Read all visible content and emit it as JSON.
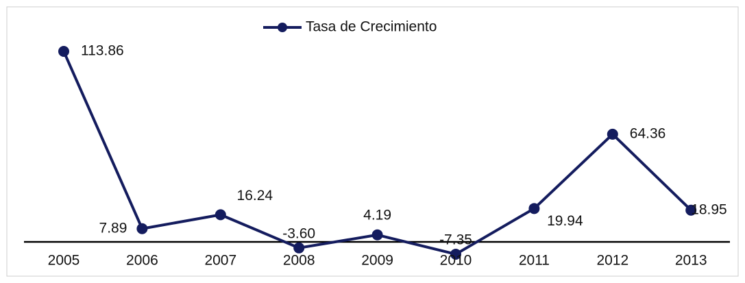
{
  "chart_data": {
    "type": "line",
    "categories": [
      "2005",
      "2006",
      "2007",
      "2008",
      "2009",
      "2010",
      "2011",
      "2012",
      "2013"
    ],
    "series": [
      {
        "name": "Tasa de Crecimiento",
        "color": "#141c5e",
        "values": [
          113.86,
          7.89,
          16.24,
          -3.6,
          4.19,
          -7.35,
          19.94,
          64.36,
          18.95
        ],
        "value_labels": [
          "113.86",
          "7.89",
          "16.24",
          "-3.60",
          "4.19",
          "-7.35",
          "19.94",
          "64.36",
          "18.95"
        ]
      }
    ],
    "legend": "top"
  }
}
